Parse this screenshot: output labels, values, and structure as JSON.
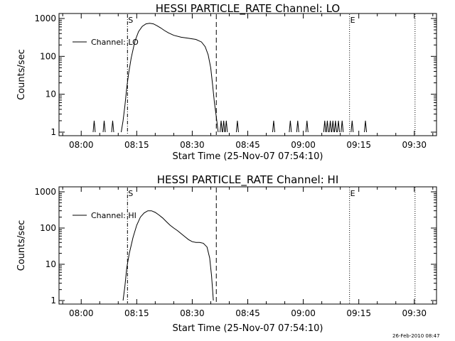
{
  "footer_text": "26-Feb-2010 08:47",
  "chart_data": [
    {
      "type": "line",
      "title": "HESSI PARTICLE_RATE Channel: LO",
      "xlabel": "Start Time (25-Nov-07 07:54:10)",
      "ylabel": "Counts/sec",
      "yscale": "log",
      "xlim": [
        "07:54",
        "09:36"
      ],
      "ylim": [
        1,
        1000
      ],
      "x_ticks": [
        "08:00",
        "08:15",
        "08:30",
        "08:45",
        "09:00",
        "09:15",
        "09:30"
      ],
      "y_ticks": [
        "1",
        "10",
        "100",
        "1000"
      ],
      "legend": {
        "label": "Channel: LO",
        "placement": "top-left"
      },
      "markers": [
        {
          "label": "S",
          "time": "08:12.5",
          "style": "dash-dot"
        },
        {
          "label": "",
          "time": "08:36.5",
          "style": "dashed"
        },
        {
          "label": "E",
          "time": "09:12.5",
          "style": "dotted"
        },
        {
          "label": "",
          "time": "09:30.2",
          "style": "dotted"
        }
      ],
      "series": [
        {
          "curve": [
            [
              "08:10.8",
              1
            ],
            [
              "08:11.3",
              2
            ],
            [
              "08:11.8",
              5
            ],
            [
              "08:12.3",
              15
            ],
            [
              "08:12.8",
              35
            ],
            [
              "08:13.5",
              90
            ],
            [
              "08:14.5",
              250
            ],
            [
              "08:15.5",
              450
            ],
            [
              "08:16.5",
              620
            ],
            [
              "08:17.5",
              720
            ],
            [
              "08:18.5",
              750
            ],
            [
              "08:19.5",
              720
            ],
            [
              "08:20.5",
              640
            ],
            [
              "08:21.5",
              560
            ],
            [
              "08:22.5",
              480
            ],
            [
              "08:23.5",
              420
            ],
            [
              "08:25",
              360
            ],
            [
              "08:27",
              320
            ],
            [
              "08:29",
              300
            ],
            [
              "08:31",
              280
            ],
            [
              "08:32.5",
              240
            ],
            [
              "08:33.5",
              180
            ],
            [
              "08:34.3",
              110
            ],
            [
              "08:35",
              50
            ],
            [
              "08:35.5",
              18
            ],
            [
              "08:36",
              6
            ],
            [
              "08:36.5",
              2.5
            ],
            [
              "08:37",
              1
            ]
          ],
          "spikes_at_2": [
            "08:03.5",
            "08:06.2",
            "08:08.5",
            "08:37.8",
            "08:38.5",
            "08:39.2",
            "08:42.2",
            "08:52",
            "08:56.5",
            "08:58.5",
            "09:01",
            "09:05.8",
            "09:06.5",
            "09:07.3",
            "09:08",
            "09:08.7",
            "09:09.5",
            "09:10.5",
            "09:13.2",
            "09:16.8"
          ]
        }
      ]
    },
    {
      "type": "line",
      "title": "HESSI PARTICLE_RATE Channel: HI",
      "xlabel": "Start Time (25-Nov-07 07:54:10)",
      "ylabel": "Counts/sec",
      "yscale": "log",
      "xlim": [
        "07:54",
        "09:36"
      ],
      "ylim": [
        1,
        1000
      ],
      "x_ticks": [
        "08:00",
        "08:15",
        "08:30",
        "08:45",
        "09:00",
        "09:15",
        "09:30"
      ],
      "y_ticks": [
        "1",
        "10",
        "100",
        "1000"
      ],
      "legend": {
        "label": "Channel: HI",
        "placement": "top-left"
      },
      "markers": [
        {
          "label": "S",
          "time": "08:12.5",
          "style": "dash-dot"
        },
        {
          "label": "",
          "time": "08:36.5",
          "style": "dashed"
        },
        {
          "label": "E",
          "time": "09:12.5",
          "style": "dotted"
        },
        {
          "label": "",
          "time": "09:30.2",
          "style": "dotted"
        }
      ],
      "series": [
        {
          "curve": [
            [
              "08:11.3",
              1
            ],
            [
              "08:11.8",
              2.5
            ],
            [
              "08:12.3",
              8
            ],
            [
              "08:13",
              20
            ],
            [
              "08:14",
              55
            ],
            [
              "08:15",
              120
            ],
            [
              "08:16",
              200
            ],
            [
              "08:17",
              260
            ],
            [
              "08:18",
              300
            ],
            [
              "08:19",
              300
            ],
            [
              "08:20",
              270
            ],
            [
              "08:21",
              230
            ],
            [
              "08:22",
              190
            ],
            [
              "08:23",
              150
            ],
            [
              "08:24",
              120
            ],
            [
              "08:25",
              100
            ],
            [
              "08:26",
              85
            ],
            [
              "08:27",
              70
            ],
            [
              "08:28",
              58
            ],
            [
              "08:29",
              48
            ],
            [
              "08:30",
              42
            ],
            [
              "08:31",
              40
            ],
            [
              "08:32",
              40
            ],
            [
              "08:33",
              38
            ],
            [
              "08:34",
              30
            ],
            [
              "08:34.7",
              15
            ],
            [
              "08:35.2",
              5
            ],
            [
              "08:35.5",
              2
            ],
            [
              "08:35.7",
              1
            ]
          ],
          "spikes_at_2": []
        }
      ]
    }
  ]
}
